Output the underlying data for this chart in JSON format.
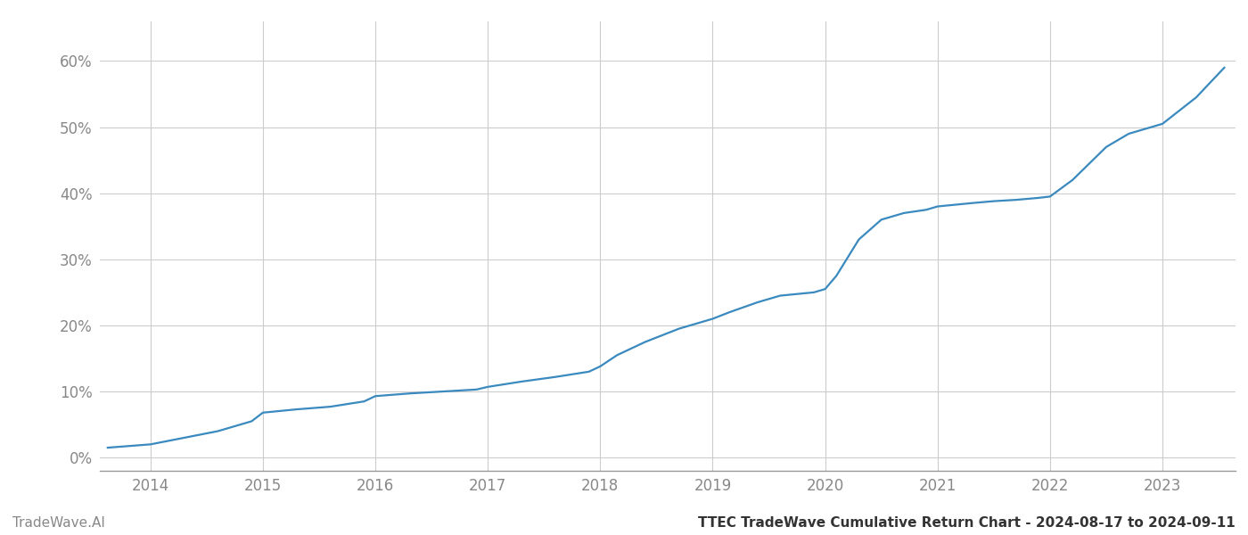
{
  "title": "TTEC TradeWave Cumulative Return Chart - 2024-08-17 to 2024-09-11",
  "watermark": "TradeWave.AI",
  "line_color": "#3a8abf",
  "background_color": "#ffffff",
  "grid_color": "#cccccc",
  "x_years": [
    2014,
    2015,
    2016,
    2017,
    2018,
    2019,
    2020,
    2021,
    2022,
    2023
  ],
  "x_values": [
    2013.62,
    2014.0,
    2014.3,
    2014.6,
    2014.9,
    2015.0,
    2015.3,
    2015.6,
    2015.9,
    2016.0,
    2016.3,
    2016.6,
    2016.9,
    2017.0,
    2017.3,
    2017.6,
    2017.9,
    2018.0,
    2018.15,
    2018.4,
    2018.7,
    2018.9,
    2019.0,
    2019.15,
    2019.4,
    2019.6,
    2019.9,
    2020.0,
    2020.1,
    2020.3,
    2020.5,
    2020.7,
    2020.9,
    2021.0,
    2021.3,
    2021.5,
    2021.7,
    2021.9,
    2022.0,
    2022.2,
    2022.5,
    2022.7,
    2022.9,
    2023.0,
    2023.3,
    2023.55
  ],
  "y_values": [
    0.015,
    0.02,
    0.03,
    0.04,
    0.055,
    0.068,
    0.073,
    0.077,
    0.085,
    0.093,
    0.097,
    0.1,
    0.103,
    0.107,
    0.115,
    0.122,
    0.13,
    0.138,
    0.155,
    0.175,
    0.195,
    0.205,
    0.21,
    0.22,
    0.235,
    0.245,
    0.25,
    0.255,
    0.275,
    0.33,
    0.36,
    0.37,
    0.375,
    0.38,
    0.385,
    0.388,
    0.39,
    0.393,
    0.395,
    0.42,
    0.47,
    0.49,
    0.5,
    0.505,
    0.545,
    0.59
  ],
  "ylim": [
    -0.02,
    0.66
  ],
  "xlim": [
    2013.55,
    2023.65
  ],
  "yticks": [
    0.0,
    0.1,
    0.2,
    0.3,
    0.4,
    0.5,
    0.6
  ],
  "ytick_labels": [
    "0%",
    "10%",
    "20%",
    "30%",
    "40%",
    "50%",
    "60%"
  ],
  "title_fontsize": 11,
  "watermark_fontsize": 11,
  "tick_fontsize": 12,
  "tick_color": "#888888",
  "spine_color": "#999999",
  "line_width": 1.6
}
